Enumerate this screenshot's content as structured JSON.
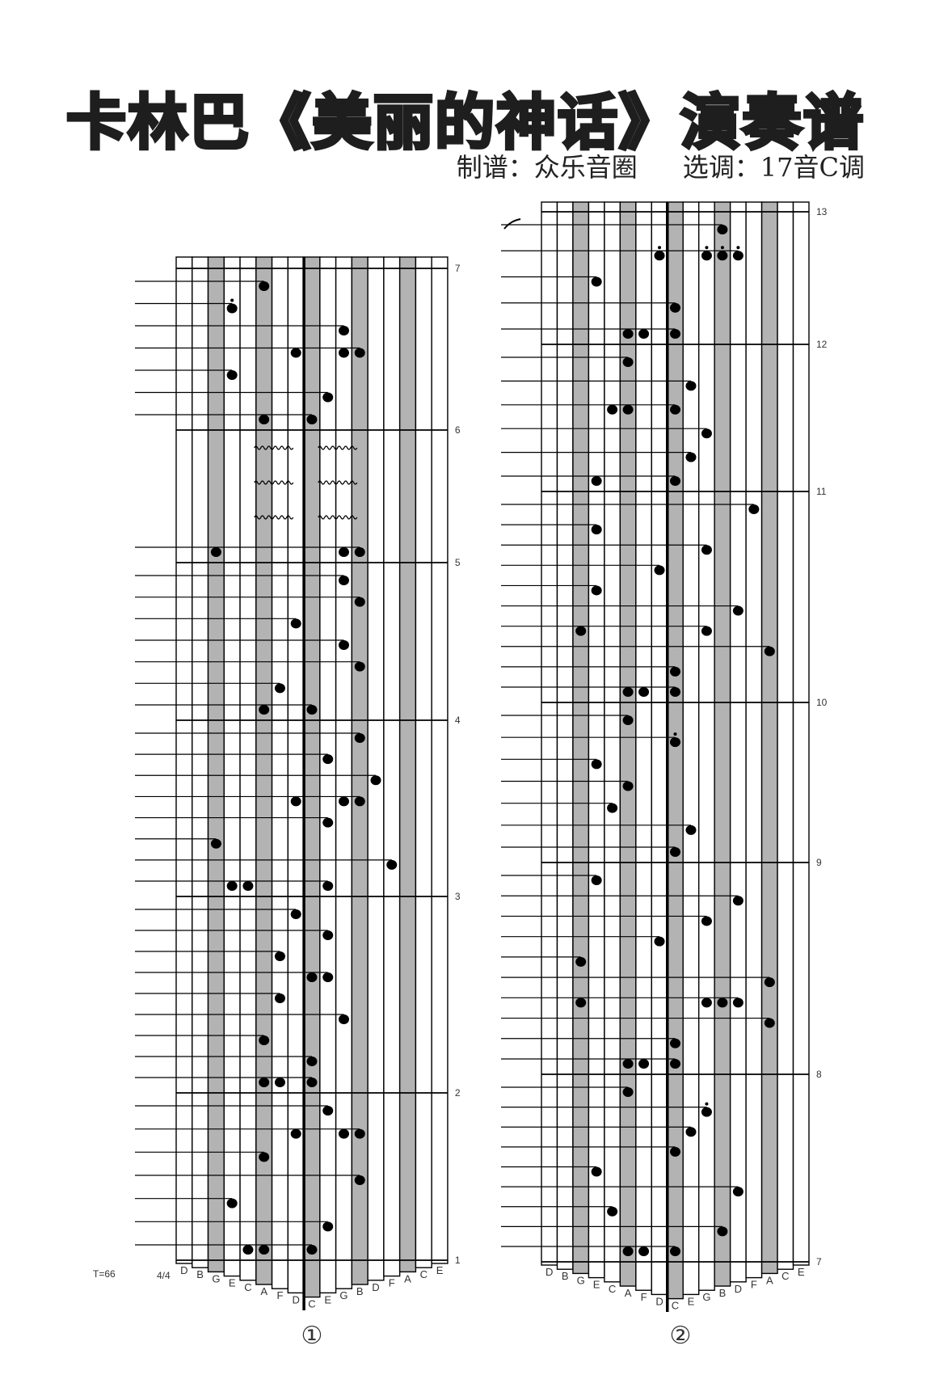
{
  "title": "卡林巴《美丽的神话》演奏谱",
  "subtitle": {
    "arranger": "制谱：众乐音圈",
    "key": "选调：17音C调"
  },
  "tempo": "T=66",
  "time_signature": "4/4",
  "tines": [
    "D",
    "B",
    "G",
    "E",
    "C",
    "A",
    "F",
    "D",
    "C",
    "E",
    "G",
    "B",
    "D",
    "F",
    "A",
    "C",
    "E"
  ],
  "gray_tines": [
    2,
    5,
    8,
    11,
    14
  ],
  "center_tine": 8,
  "colors": {
    "gray_tine": "#b3b3b3",
    "ink": "#000000"
  },
  "staves": [
    {
      "label": "①",
      "top_label": "7",
      "measures": [
        {
          "number": "1",
          "events": [
            {
              "n": [
                4,
                5,
                8
              ]
            },
            {
              "n": [
                9
              ]
            },
            {
              "n": [
                3
              ]
            },
            {
              "n": [
                11
              ]
            },
            {
              "n": [
                5
              ]
            },
            {
              "n": [
                7,
                10,
                11
              ]
            },
            {
              "n": [
                9
              ]
            }
          ]
        },
        {
          "number": "2",
          "events": [
            {
              "n": [
                5,
                6,
                8
              ]
            },
            {
              "n": [
                8
              ]
            },
            {
              "n": [
                5
              ]
            },
            {
              "n": [
                10
              ]
            },
            {
              "n": [
                6
              ]
            },
            {
              "n": [
                8,
                9
              ]
            },
            {
              "n": [
                6
              ]
            },
            {
              "n": [
                9
              ]
            },
            {
              "n": [
                7
              ]
            }
          ]
        },
        {
          "number": "3",
          "events": [
            {
              "n": [
                3,
                4,
                9
              ]
            },
            {
              "n": [
                13
              ]
            },
            {
              "n": [
                2
              ]
            },
            {
              "n": [
                9
              ]
            },
            {
              "n": [
                7,
                10,
                11
              ]
            },
            {
              "n": [
                12
              ]
            },
            {
              "n": [
                9
              ]
            },
            {
              "n": [
                11
              ]
            }
          ]
        },
        {
          "number": "4",
          "events": [
            {
              "n": [
                5,
                8
              ]
            },
            {
              "n": [
                6
              ]
            },
            {
              "n": [
                11
              ]
            },
            {
              "n": [
                10
              ]
            },
            {
              "n": [
                7
              ]
            },
            {
              "n": [
                11
              ]
            },
            {
              "n": [
                10
              ]
            }
          ]
        },
        {
          "number": "5",
          "events": [
            {
              "n": [
                2,
                10,
                11
              ]
            },
            {
              "tremolo": [
                [
                  5,
                  6
                ],
                [
                  9,
                  10
                ]
              ]
            },
            {
              "tremolo": [
                [
                  5,
                  6
                ],
                [
                  9,
                  10
                ]
              ]
            },
            {
              "tremolo": [
                [
                  5,
                  6
                ],
                [
                  9,
                  10
                ]
              ]
            }
          ]
        },
        {
          "number": "6",
          "events": [
            {
              "n": [
                5,
                8
              ]
            },
            {
              "n": [
                9
              ]
            },
            {
              "n": [
                3
              ]
            },
            {
              "n": [
                7,
                10,
                11
              ]
            },
            {
              "n": [
                10
              ]
            },
            {
              "n": [
                3
              ],
              "dot": true
            },
            {
              "n": [
                5
              ]
            }
          ]
        }
      ]
    },
    {
      "label": "②",
      "top_label": "13",
      "measures": [
        {
          "number": "7",
          "events": [
            {
              "n": [
                5,
                6,
                8
              ]
            },
            {
              "n": [
                11
              ]
            },
            {
              "n": [
                4
              ]
            },
            {
              "n": [
                12
              ]
            },
            {
              "n": [
                3
              ]
            },
            {
              "n": [
                8
              ]
            },
            {
              "n": [
                9
              ]
            },
            {
              "n": [
                10
              ],
              "dot": true
            },
            {
              "n": [
                5
              ]
            }
          ]
        },
        {
          "number": "8",
          "events": [
            {
              "n": [
                5,
                6,
                8
              ]
            },
            {
              "n": [
                8
              ]
            },
            {
              "n": [
                14
              ]
            },
            {
              "n": [
                2,
                10,
                11,
                12
              ]
            },
            {
              "n": [
                14
              ]
            },
            {
              "n": [
                2
              ]
            },
            {
              "n": [
                7
              ]
            },
            {
              "n": [
                10
              ]
            },
            {
              "n": [
                12
              ]
            },
            {
              "n": [
                3
              ]
            }
          ]
        },
        {
          "number": "9",
          "events": [
            {
              "n": [
                8
              ]
            },
            {
              "n": [
                9
              ]
            },
            {
              "n": [
                4
              ]
            },
            {
              "n": [
                5
              ]
            },
            {
              "n": [
                3
              ]
            },
            {
              "n": [
                8
              ],
              "dot": true
            },
            {
              "n": [
                5
              ]
            }
          ]
        },
        {
          "number": "10",
          "events": [
            {
              "n": [
                5,
                6,
                8
              ]
            },
            {
              "n": [
                8
              ]
            },
            {
              "n": [
                14
              ]
            },
            {
              "n": [
                2,
                10
              ]
            },
            {
              "n": [
                12
              ]
            },
            {
              "n": [
                3
              ]
            },
            {
              "n": [
                7
              ]
            },
            {
              "n": [
                10
              ]
            },
            {
              "n": [
                3
              ]
            },
            {
              "n": [
                13
              ]
            }
          ]
        },
        {
          "number": "11",
          "events": [
            {
              "n": [
                3,
                8
              ]
            },
            {
              "n": [
                9
              ]
            },
            {
              "n": [
                10
              ]
            },
            {
              "n": [
                4,
                5,
                8
              ]
            },
            {
              "n": [
                9
              ]
            },
            {
              "n": [
                5
              ]
            }
          ]
        },
        {
          "number": "12",
          "events": [
            {
              "n": [
                5,
                6,
                8
              ]
            },
            {
              "n": [
                8
              ]
            },
            {
              "n": [
                3
              ]
            },
            {
              "n": [
                7,
                10,
                11,
                12
              ],
              "dot": true
            },
            {
              "n": [
                11
              ]
            }
          ]
        }
      ]
    }
  ]
}
